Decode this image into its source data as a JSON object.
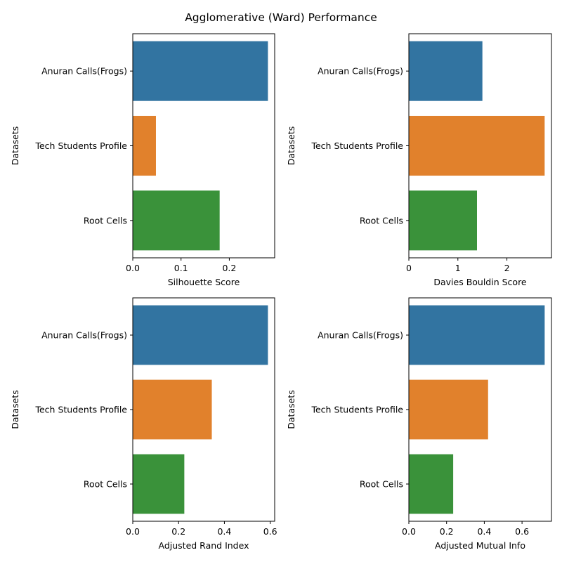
{
  "figure": {
    "title": "Agglomerative (Ward) Performance"
  },
  "chart_data": [
    {
      "type": "bar",
      "orientation": "horizontal",
      "categories": [
        "Anuran Calls(Frogs)",
        "Tech Students Profile",
        "Root Cells"
      ],
      "values": [
        0.28,
        0.048,
        0.18
      ],
      "colors": [
        "#3274a1",
        "#e1812c",
        "#3a923a"
      ],
      "xlabel": "Silhouette Score",
      "ylabel": "Datasets",
      "xlim": [
        0,
        0.294
      ],
      "xticks": [
        0.0,
        0.1,
        0.2
      ],
      "xtick_labels": [
        "0.0",
        "0.1",
        "0.2"
      ],
      "grid": false
    },
    {
      "type": "bar",
      "orientation": "horizontal",
      "categories": [
        "Anuran Calls(Frogs)",
        "Tech Students Profile",
        "Root Cells"
      ],
      "values": [
        1.5,
        2.77,
        1.39
      ],
      "colors": [
        "#3274a1",
        "#e1812c",
        "#3a923a"
      ],
      "xlabel": "Davies Bouldin Score",
      "ylabel": "Datasets",
      "xlim": [
        0,
        2.909
      ],
      "xticks": [
        0,
        1,
        2
      ],
      "xtick_labels": [
        "0",
        "1",
        "2"
      ],
      "grid": false
    },
    {
      "type": "bar",
      "orientation": "horizontal",
      "categories": [
        "Anuran Calls(Frogs)",
        "Tech Students Profile",
        "Root Cells"
      ],
      "values": [
        0.59,
        0.345,
        0.225
      ],
      "colors": [
        "#3274a1",
        "#e1812c",
        "#3a923a"
      ],
      "xlabel": "Adjusted Rand Index",
      "ylabel": "Datasets",
      "xlim": [
        0,
        0.6195
      ],
      "xticks": [
        0.0,
        0.2,
        0.4,
        0.6
      ],
      "xtick_labels": [
        "0.0",
        "0.2",
        "0.4",
        "0.6"
      ],
      "grid": false
    },
    {
      "type": "bar",
      "orientation": "horizontal",
      "categories": [
        "Anuran Calls(Frogs)",
        "Tech Students Profile",
        "Root Cells"
      ],
      "values": [
        0.72,
        0.42,
        0.235
      ],
      "colors": [
        "#3274a1",
        "#e1812c",
        "#3a923a"
      ],
      "xlabel": "Adjusted Mutual Info",
      "ylabel": "Datasets",
      "xlim": [
        0,
        0.756
      ],
      "xticks": [
        0.0,
        0.2,
        0.4,
        0.6
      ],
      "xtick_labels": [
        "0.0",
        "0.2",
        "0.4",
        "0.6"
      ],
      "grid": false
    }
  ]
}
